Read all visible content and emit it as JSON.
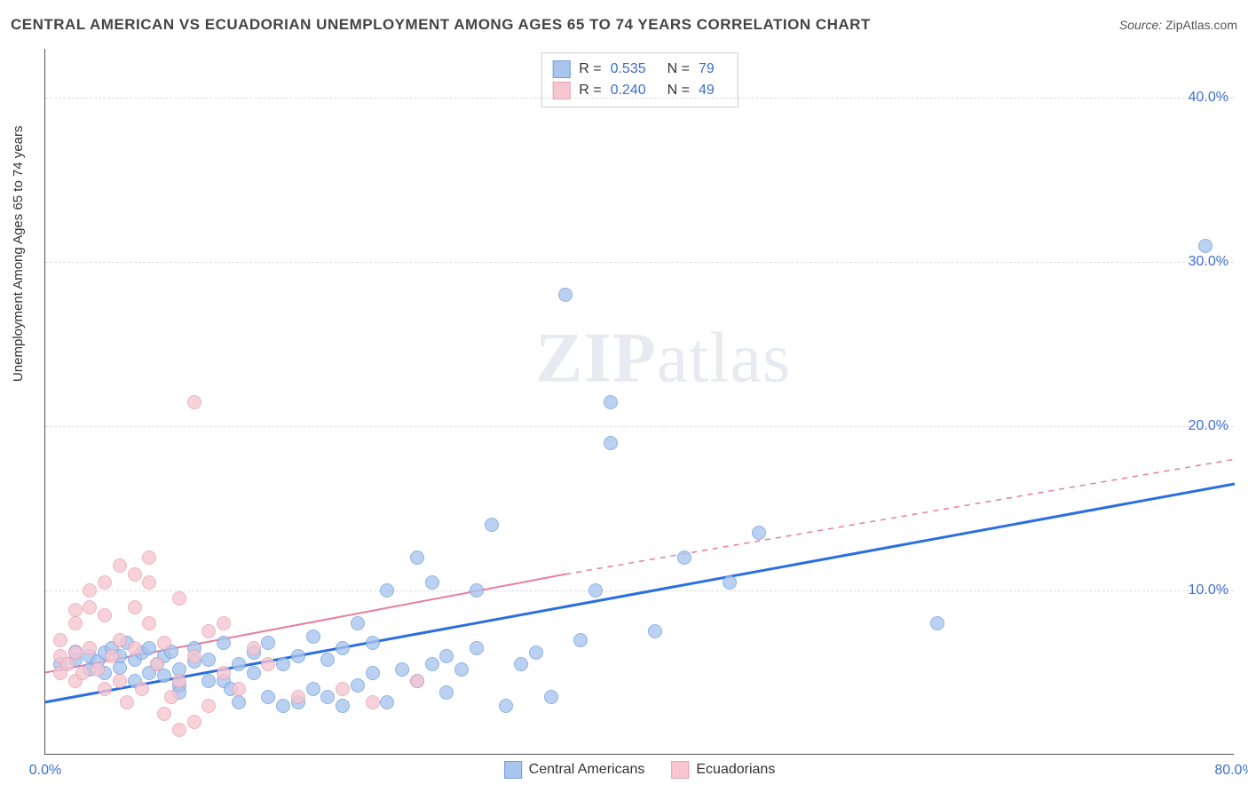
{
  "header": {
    "title": "CENTRAL AMERICAN VS ECUADORIAN UNEMPLOYMENT AMONG AGES 65 TO 74 YEARS CORRELATION CHART",
    "source_label": "Source:",
    "source_value": "ZipAtlas.com"
  },
  "chart": {
    "type": "scatter",
    "yaxis_title": "Unemployment Among Ages 65 to 74 years",
    "xlim": [
      0,
      80
    ],
    "ylim": [
      0,
      43
    ],
    "xtick_positions": [
      0,
      80
    ],
    "xtick_labels": [
      "0.0%",
      "80.0%"
    ],
    "ytick_positions": [
      10,
      20,
      30,
      40
    ],
    "ytick_labels": [
      "10.0%",
      "20.0%",
      "30.0%",
      "40.0%"
    ],
    "grid_color": "#dddddd",
    "background_color": "#ffffff",
    "axis_color": "#555555",
    "marker_size": 16,
    "watermark": "ZIPatlas",
    "series": [
      {
        "name": "Central Americans",
        "fill_color": "#a8c5ee",
        "stroke_color": "#6f9ede",
        "trend_color": "#2a6ee0",
        "trend_style": "solid",
        "trend_width": 3,
        "trend_start": [
          0,
          3.2
        ],
        "trend_end": [
          80,
          16.5
        ],
        "trend_dash_start": [
          80,
          16.5
        ],
        "trend_dash_end": [
          80,
          16.5
        ],
        "R": "0.535",
        "N": "79",
        "points": [
          [
            1,
            5.5
          ],
          [
            2,
            5.8
          ],
          [
            2,
            6.3
          ],
          [
            3,
            5.2
          ],
          [
            3,
            6.0
          ],
          [
            3.5,
            5.7
          ],
          [
            4,
            6.2
          ],
          [
            4,
            5.0
          ],
          [
            4.5,
            6.5
          ],
          [
            5,
            5.3
          ],
          [
            5,
            6.0
          ],
          [
            5.5,
            6.8
          ],
          [
            6,
            5.8
          ],
          [
            6,
            4.5
          ],
          [
            6.5,
            6.2
          ],
          [
            7,
            5.0
          ],
          [
            7,
            6.5
          ],
          [
            7.5,
            5.5
          ],
          [
            8,
            4.8
          ],
          [
            8,
            6.0
          ],
          [
            8.5,
            6.3
          ],
          [
            9,
            5.2
          ],
          [
            9,
            4.2
          ],
          [
            9,
            3.8
          ],
          [
            10,
            5.7
          ],
          [
            10,
            6.5
          ],
          [
            11,
            4.5
          ],
          [
            11,
            5.8
          ],
          [
            12,
            6.8
          ],
          [
            12,
            4.5
          ],
          [
            12.5,
            4.0
          ],
          [
            13,
            5.5
          ],
          [
            13,
            3.2
          ],
          [
            14,
            5.0
          ],
          [
            14,
            6.2
          ],
          [
            15,
            6.8
          ],
          [
            15,
            3.5
          ],
          [
            16,
            3.0
          ],
          [
            16,
            5.5
          ],
          [
            17,
            6.0
          ],
          [
            17,
            3.2
          ],
          [
            18,
            7.2
          ],
          [
            18,
            4.0
          ],
          [
            19,
            3.5
          ],
          [
            19,
            5.8
          ],
          [
            20,
            6.5
          ],
          [
            20,
            3.0
          ],
          [
            21,
            8.0
          ],
          [
            21,
            4.2
          ],
          [
            22,
            5.0
          ],
          [
            22,
            6.8
          ],
          [
            23,
            10.0
          ],
          [
            23,
            3.2
          ],
          [
            24,
            5.2
          ],
          [
            25,
            12.0
          ],
          [
            25,
            4.5
          ],
          [
            26,
            10.5
          ],
          [
            26,
            5.5
          ],
          [
            27,
            6.0
          ],
          [
            27,
            3.8
          ],
          [
            28,
            5.2
          ],
          [
            29,
            6.5
          ],
          [
            29,
            10.0
          ],
          [
            30,
            14.0
          ],
          [
            31,
            3.0
          ],
          [
            32,
            5.5
          ],
          [
            33,
            6.2
          ],
          [
            34,
            3.5
          ],
          [
            35,
            28.0
          ],
          [
            36,
            7.0
          ],
          [
            37,
            10.0
          ],
          [
            38,
            21.5
          ],
          [
            38,
            19.0
          ],
          [
            41,
            7.5
          ],
          [
            43,
            12.0
          ],
          [
            46,
            10.5
          ],
          [
            48,
            13.5
          ],
          [
            60,
            8.0
          ],
          [
            78,
            31.0
          ]
        ]
      },
      {
        "name": "Ecuadorians",
        "fill_color": "#f6c6d1",
        "stroke_color": "#ea9fb2",
        "trend_color": "#e87ba0",
        "trend_style": "solid",
        "trend_width": 2,
        "trend_start": [
          0,
          5.0
        ],
        "trend_end": [
          35,
          11.0
        ],
        "trend_dash_start": [
          35,
          11.0
        ],
        "trend_dash_end": [
          80,
          18.0
        ],
        "R": "0.240",
        "N": "49",
        "points": [
          [
            1,
            5.0
          ],
          [
            1,
            6.0
          ],
          [
            1,
            7.0
          ],
          [
            1.5,
            5.5
          ],
          [
            2,
            4.5
          ],
          [
            2,
            6.2
          ],
          [
            2,
            8.0
          ],
          [
            2,
            8.8
          ],
          [
            2.5,
            5.0
          ],
          [
            3,
            6.5
          ],
          [
            3,
            9.0
          ],
          [
            3,
            10.0
          ],
          [
            3.5,
            5.2
          ],
          [
            4,
            8.5
          ],
          [
            4,
            10.5
          ],
          [
            4,
            4.0
          ],
          [
            4.5,
            6.0
          ],
          [
            5,
            11.5
          ],
          [
            5,
            4.5
          ],
          [
            5,
            7.0
          ],
          [
            5.5,
            3.2
          ],
          [
            6,
            9.0
          ],
          [
            6,
            6.5
          ],
          [
            6,
            11.0
          ],
          [
            6.5,
            4.0
          ],
          [
            7,
            10.5
          ],
          [
            7,
            8.0
          ],
          [
            7,
            12.0
          ],
          [
            7.5,
            5.5
          ],
          [
            8,
            6.8
          ],
          [
            8,
            2.5
          ],
          [
            8.5,
            3.5
          ],
          [
            9,
            9.5
          ],
          [
            9,
            4.5
          ],
          [
            9,
            1.5
          ],
          [
            10,
            21.5
          ],
          [
            10,
            6.0
          ],
          [
            10,
            2.0
          ],
          [
            11,
            7.5
          ],
          [
            11,
            3.0
          ],
          [
            12,
            5.0
          ],
          [
            12,
            8.0
          ],
          [
            13,
            4.0
          ],
          [
            14,
            6.5
          ],
          [
            15,
            5.5
          ],
          [
            17,
            3.5
          ],
          [
            20,
            4.0
          ],
          [
            22,
            3.2
          ],
          [
            25,
            4.5
          ]
        ]
      }
    ]
  },
  "legend": {
    "item1_label": "Central Americans",
    "item2_label": "Ecuadorians"
  },
  "stats": {
    "r_label": "R  =",
    "n_label": "N  ="
  }
}
